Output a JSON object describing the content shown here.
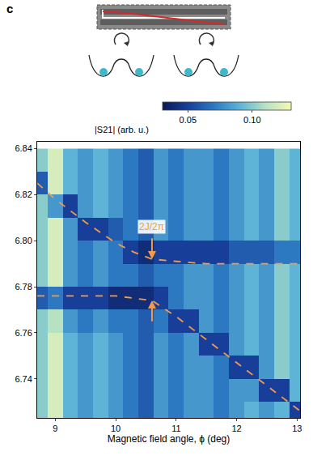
{
  "chart_data": {
    "type": "heatmap",
    "panel": "c",
    "x_label": "Magnetic field angle, ϕ (deg)",
    "xlim": [
      8.7,
      13.05
    ],
    "xticks": [
      9,
      10,
      11,
      12,
      13
    ],
    "ylim": [
      6.723,
      6.843
    ],
    "yticks": [
      6.74,
      6.76,
      6.78,
      {
        "value": 6.8,
        "label": "6.80"
      },
      6.82,
      6.84
    ],
    "heatmap": {
      "x": [
        8.75,
        9.0,
        9.25,
        9.5,
        9.75,
        10.0,
        10.25,
        10.5,
        10.75,
        11.0,
        11.25,
        11.5,
        11.75,
        12.0,
        12.25,
        12.5,
        12.75,
        13.0
      ],
      "y": [
        6.725,
        6.735,
        6.745,
        6.755,
        6.765,
        6.775,
        6.785,
        6.795,
        6.805,
        6.815,
        6.825,
        6.835
      ],
      "z": [
        [
          0.1,
          0.12,
          0.09,
          0.08,
          0.09,
          0.08,
          0.07,
          0.06,
          0.08,
          0.07,
          0.08,
          0.08,
          0.07,
          0.08,
          0.09,
          0.08,
          0.09,
          0.05
        ],
        [
          0.1,
          0.12,
          0.09,
          0.08,
          0.09,
          0.08,
          0.07,
          0.06,
          0.08,
          0.07,
          0.08,
          0.08,
          0.07,
          0.08,
          0.08,
          0.05,
          0.05,
          0.09
        ],
        [
          0.1,
          0.12,
          0.09,
          0.08,
          0.09,
          0.08,
          0.07,
          0.06,
          0.08,
          0.07,
          0.08,
          0.08,
          0.07,
          0.05,
          0.05,
          0.08,
          0.1,
          0.09
        ],
        [
          0.1,
          0.12,
          0.09,
          0.08,
          0.09,
          0.08,
          0.07,
          0.06,
          0.08,
          0.07,
          0.08,
          0.05,
          0.05,
          0.08,
          0.09,
          0.08,
          0.1,
          0.09
        ],
        [
          0.1,
          0.11,
          0.08,
          0.07,
          0.08,
          0.07,
          0.07,
          0.06,
          0.07,
          0.05,
          0.05,
          0.08,
          0.07,
          0.08,
          0.09,
          0.08,
          0.1,
          0.09
        ],
        [
          0.06,
          0.07,
          0.05,
          0.05,
          0.05,
          0.04,
          0.04,
          0.04,
          0.05,
          0.07,
          0.08,
          0.08,
          0.07,
          0.08,
          0.09,
          0.08,
          0.1,
          0.09
        ],
        [
          0.1,
          0.12,
          0.08,
          0.07,
          0.08,
          0.07,
          0.07,
          0.06,
          0.07,
          0.07,
          0.08,
          0.08,
          0.07,
          0.08,
          0.09,
          0.08,
          0.1,
          0.09
        ],
        [
          0.1,
          0.12,
          0.08,
          0.07,
          0.08,
          0.07,
          0.05,
          0.04,
          0.05,
          0.05,
          0.05,
          0.05,
          0.05,
          0.06,
          0.06,
          0.06,
          0.07,
          0.07
        ],
        [
          0.1,
          0.12,
          0.08,
          0.05,
          0.05,
          0.06,
          0.07,
          0.06,
          0.08,
          0.07,
          0.08,
          0.08,
          0.07,
          0.08,
          0.09,
          0.08,
          0.1,
          0.09
        ],
        [
          0.1,
          0.08,
          0.05,
          0.08,
          0.09,
          0.08,
          0.07,
          0.06,
          0.08,
          0.07,
          0.08,
          0.08,
          0.07,
          0.08,
          0.09,
          0.08,
          0.1,
          0.09
        ],
        [
          0.06,
          0.12,
          0.09,
          0.08,
          0.09,
          0.08,
          0.07,
          0.06,
          0.08,
          0.07,
          0.08,
          0.08,
          0.07,
          0.08,
          0.09,
          0.08,
          0.1,
          0.09
        ],
        [
          0.1,
          0.12,
          0.09,
          0.08,
          0.09,
          0.08,
          0.07,
          0.06,
          0.08,
          0.07,
          0.08,
          0.08,
          0.07,
          0.08,
          0.09,
          0.08,
          0.1,
          0.09
        ]
      ]
    },
    "colorbar": {
      "title": "|S21| (arb. u.)",
      "range": [
        0.03,
        0.13
      ],
      "ticks": [
        0.05,
        {
          "value": 0.1,
          "label": "0.10"
        }
      ]
    },
    "series": [
      {
        "type": "line",
        "line_style": "dashed",
        "color": "#f39a4c",
        "x": [
          8.7,
          9.0,
          9.5,
          10.0,
          10.3,
          10.6,
          11.0,
          11.5,
          12.0,
          12.5,
          13.05
        ],
        "values": [
          6.825,
          6.818,
          6.808,
          6.799,
          6.795,
          6.792,
          6.791,
          6.79,
          6.79,
          6.79,
          6.79
        ]
      },
      {
        "type": "line",
        "line_style": "dashed",
        "color": "#f39a4c",
        "x": [
          8.7,
          9.0,
          9.5,
          10.0,
          10.3,
          10.6,
          11.0,
          11.5,
          12.0,
          12.5,
          13.05
        ],
        "values": [
          6.776,
          6.776,
          6.776,
          6.776,
          6.775,
          6.774,
          6.767,
          6.757,
          6.747,
          6.737,
          6.726
        ]
      }
    ],
    "annotations": [
      {
        "text": "2J/2π",
        "x": 10.6,
        "y": 6.806,
        "color": "#f39a4c",
        "arrows": [
          6.792,
          6.774
        ]
      }
    ]
  }
}
